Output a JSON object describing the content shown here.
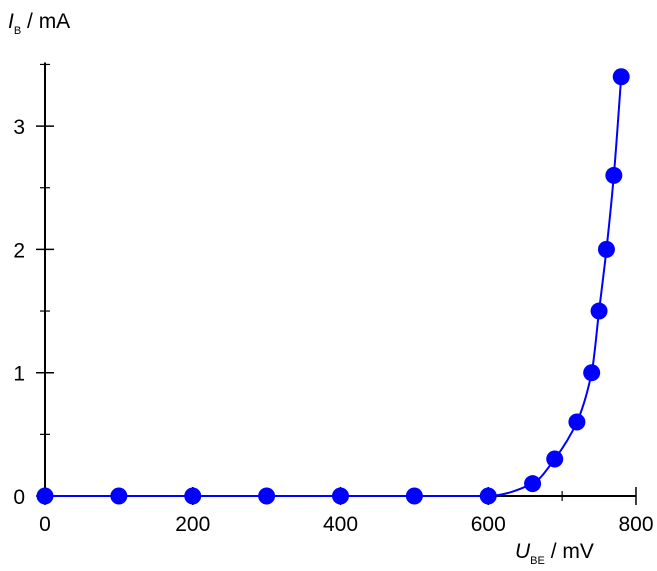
{
  "chart_data": {
    "type": "scatter",
    "title": "",
    "xlabel": {
      "symbol": "U",
      "subscript": "BE",
      "unit": " / mV"
    },
    "ylabel": {
      "symbol": "I",
      "subscript": "B",
      "unit": " / mA"
    },
    "xlim": [
      0,
      800
    ],
    "ylim": [
      0,
      3.5
    ],
    "x_ticks": [
      0,
      200,
      400,
      600,
      800
    ],
    "x_tick_labels": [
      "0",
      "200",
      "400",
      "600",
      "800"
    ],
    "x_minor_ticks": [
      100,
      300,
      500,
      700
    ],
    "y_ticks": [
      0,
      1,
      2,
      3
    ],
    "y_tick_labels": [
      "0",
      "1",
      "2",
      "3"
    ],
    "y_minor_ticks": [
      0.5,
      1.5,
      2.5,
      3.5
    ],
    "grid": false,
    "legend": "none",
    "series": [
      {
        "x": [
          0,
          100,
          200,
          300,
          400,
          500,
          600,
          660,
          690,
          720,
          740,
          750,
          760,
          770,
          780
        ],
        "y": [
          0,
          0,
          0,
          0,
          0,
          0,
          0,
          0.1,
          0.3,
          0.6,
          1.0,
          1.5,
          2.0,
          2.6,
          3.4
        ],
        "marker_color": "#0000ff",
        "line_color": "#0000ff",
        "fit_curve": "exponential"
      }
    ]
  }
}
